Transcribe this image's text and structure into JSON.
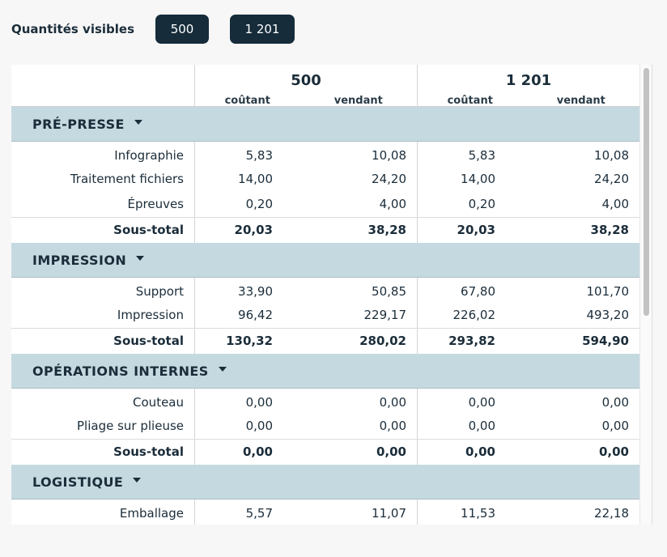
{
  "header": {
    "label": "Quantités visibles",
    "quantities": [
      "500",
      "1 201"
    ]
  },
  "table": {
    "columns": [
      "500",
      "1 201"
    ],
    "sub_columns": [
      "coûtant",
      "vendant"
    ],
    "sections": [
      {
        "title": "PRÉ-PRESSE",
        "rows": [
          {
            "label": "Infographie",
            "v": [
              "5,83",
              "10,08",
              "5,83",
              "10,08"
            ]
          },
          {
            "label": "Traitement fichiers",
            "v": [
              "14,00",
              "24,20",
              "14,00",
              "24,20"
            ]
          },
          {
            "label": "Épreuves",
            "v": [
              "0,20",
              "4,00",
              "0,20",
              "4,00"
            ]
          }
        ],
        "total": {
          "label": "Sous-total",
          "v": [
            "20,03",
            "38,28",
            "20,03",
            "38,28"
          ]
        }
      },
      {
        "title": "IMPRESSION",
        "rows": [
          {
            "label": "Support",
            "v": [
              "33,90",
              "50,85",
              "67,80",
              "101,70"
            ]
          },
          {
            "label": "Impression",
            "v": [
              "96,42",
              "229,17",
              "226,02",
              "493,20"
            ]
          }
        ],
        "total": {
          "label": "Sous-total",
          "v": [
            "130,32",
            "280,02",
            "293,82",
            "594,90"
          ]
        }
      },
      {
        "title": "OPÉRATIONS INTERNES",
        "rows": [
          {
            "label": "Couteau",
            "v": [
              "0,00",
              "0,00",
              "0,00",
              "0,00"
            ]
          },
          {
            "label": "Pliage sur plieuse",
            "v": [
              "0,00",
              "0,00",
              "0,00",
              "0,00"
            ]
          }
        ],
        "total": {
          "label": "Sous-total",
          "v": [
            "0,00",
            "0,00",
            "0,00",
            "0,00"
          ]
        }
      },
      {
        "title": "LOGISTIQUE",
        "rows": [
          {
            "label": "Emballage",
            "v": [
              "5,57",
              "11,07",
              "11,53",
              "22,18"
            ]
          }
        ]
      }
    ]
  },
  "icons": {
    "section_toggle": "caret-down-icon"
  }
}
